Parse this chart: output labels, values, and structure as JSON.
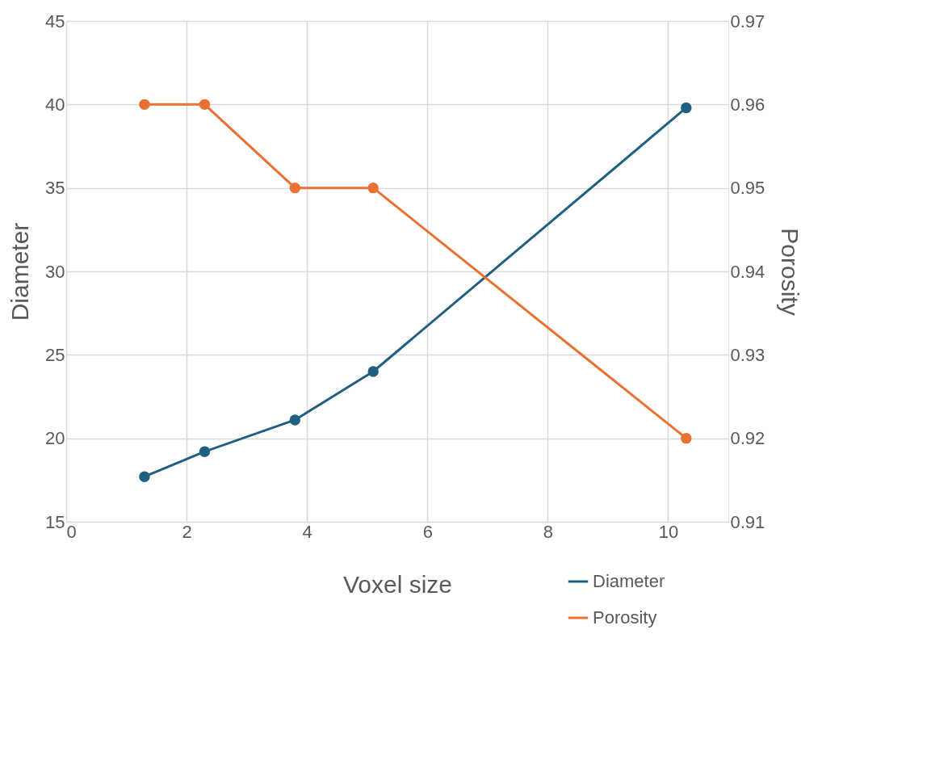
{
  "chart_data": {
    "type": "line",
    "xlabel": "Voxel size",
    "ylabel": "Diameter",
    "y2label": "Porosity",
    "x": [
      1.3,
      2.3,
      3.8,
      5.1,
      10.3
    ],
    "series": [
      {
        "name": "Diameter",
        "color": "#1f5f7f",
        "values": [
          17.7,
          19.2,
          21.1,
          24.0,
          39.8
        ]
      },
      {
        "name": "Porosity",
        "color": "#e97132",
        "axis": "y2",
        "values": [
          0.96,
          0.96,
          0.95,
          0.95,
          0.92
        ]
      }
    ],
    "xlim": [
      0,
      11
    ],
    "xticks": [
      0,
      2,
      4,
      6,
      8,
      10
    ],
    "ylim": [
      15,
      45
    ],
    "yticks": [
      15,
      20,
      25,
      30,
      35,
      40,
      45
    ],
    "y2lim": [
      0.91,
      0.97
    ],
    "y2ticks": [
      0.91,
      0.92,
      0.93,
      0.94,
      0.95,
      0.96,
      0.97
    ],
    "grid": true,
    "legend": "bottom right",
    "marker": "circle",
    "line_style": "solid"
  }
}
